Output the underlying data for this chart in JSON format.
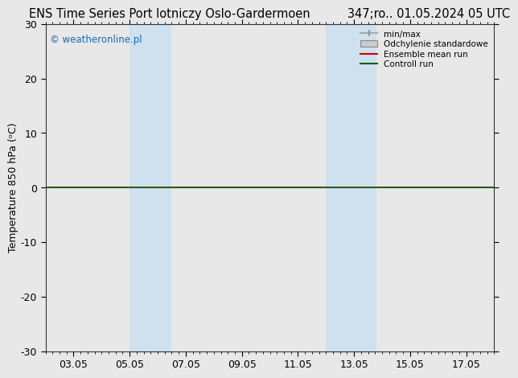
{
  "title_left": "ENS Time Series Port lotniczy Oslo-Gardermoen",
  "title_right": "347;ro.. 01.05.2024 05 UTC",
  "ylabel": "Temperature 850 hPa (ᵒC)",
  "watermark": "© weatheronline.pl",
  "ylim": [
    -30,
    30
  ],
  "yticks": [
    -30,
    -20,
    -10,
    0,
    10,
    20,
    30
  ],
  "xtick_labels": [
    "03.05",
    "05.05",
    "07.05",
    "09.05",
    "11.05",
    "13.05",
    "15.05",
    "17.05"
  ],
  "xtick_positions": [
    2,
    4,
    6,
    8,
    10,
    12,
    14,
    16
  ],
  "xlim": [
    1,
    17
  ],
  "shaded_bands": [
    {
      "xmin": 4.0,
      "xmax": 5.5,
      "color": "#cfe0ef"
    },
    {
      "xmin": 11.0,
      "xmax": 12.8,
      "color": "#cfe0ef"
    }
  ],
  "hline_y": 0,
  "hline_color": "#2d5a1b",
  "legend_labels": [
    "min/max",
    "Odchylenie standardowe",
    "Ensemble mean run",
    "Controll run"
  ],
  "bg_color": "#e8e8e8",
  "plot_bg_color": "#e8e8e8",
  "title_fontsize": 10.5,
  "tick_fontsize": 9,
  "ylabel_fontsize": 9,
  "watermark_color": "#1a6ab5",
  "watermark_fontsize": 8.5
}
